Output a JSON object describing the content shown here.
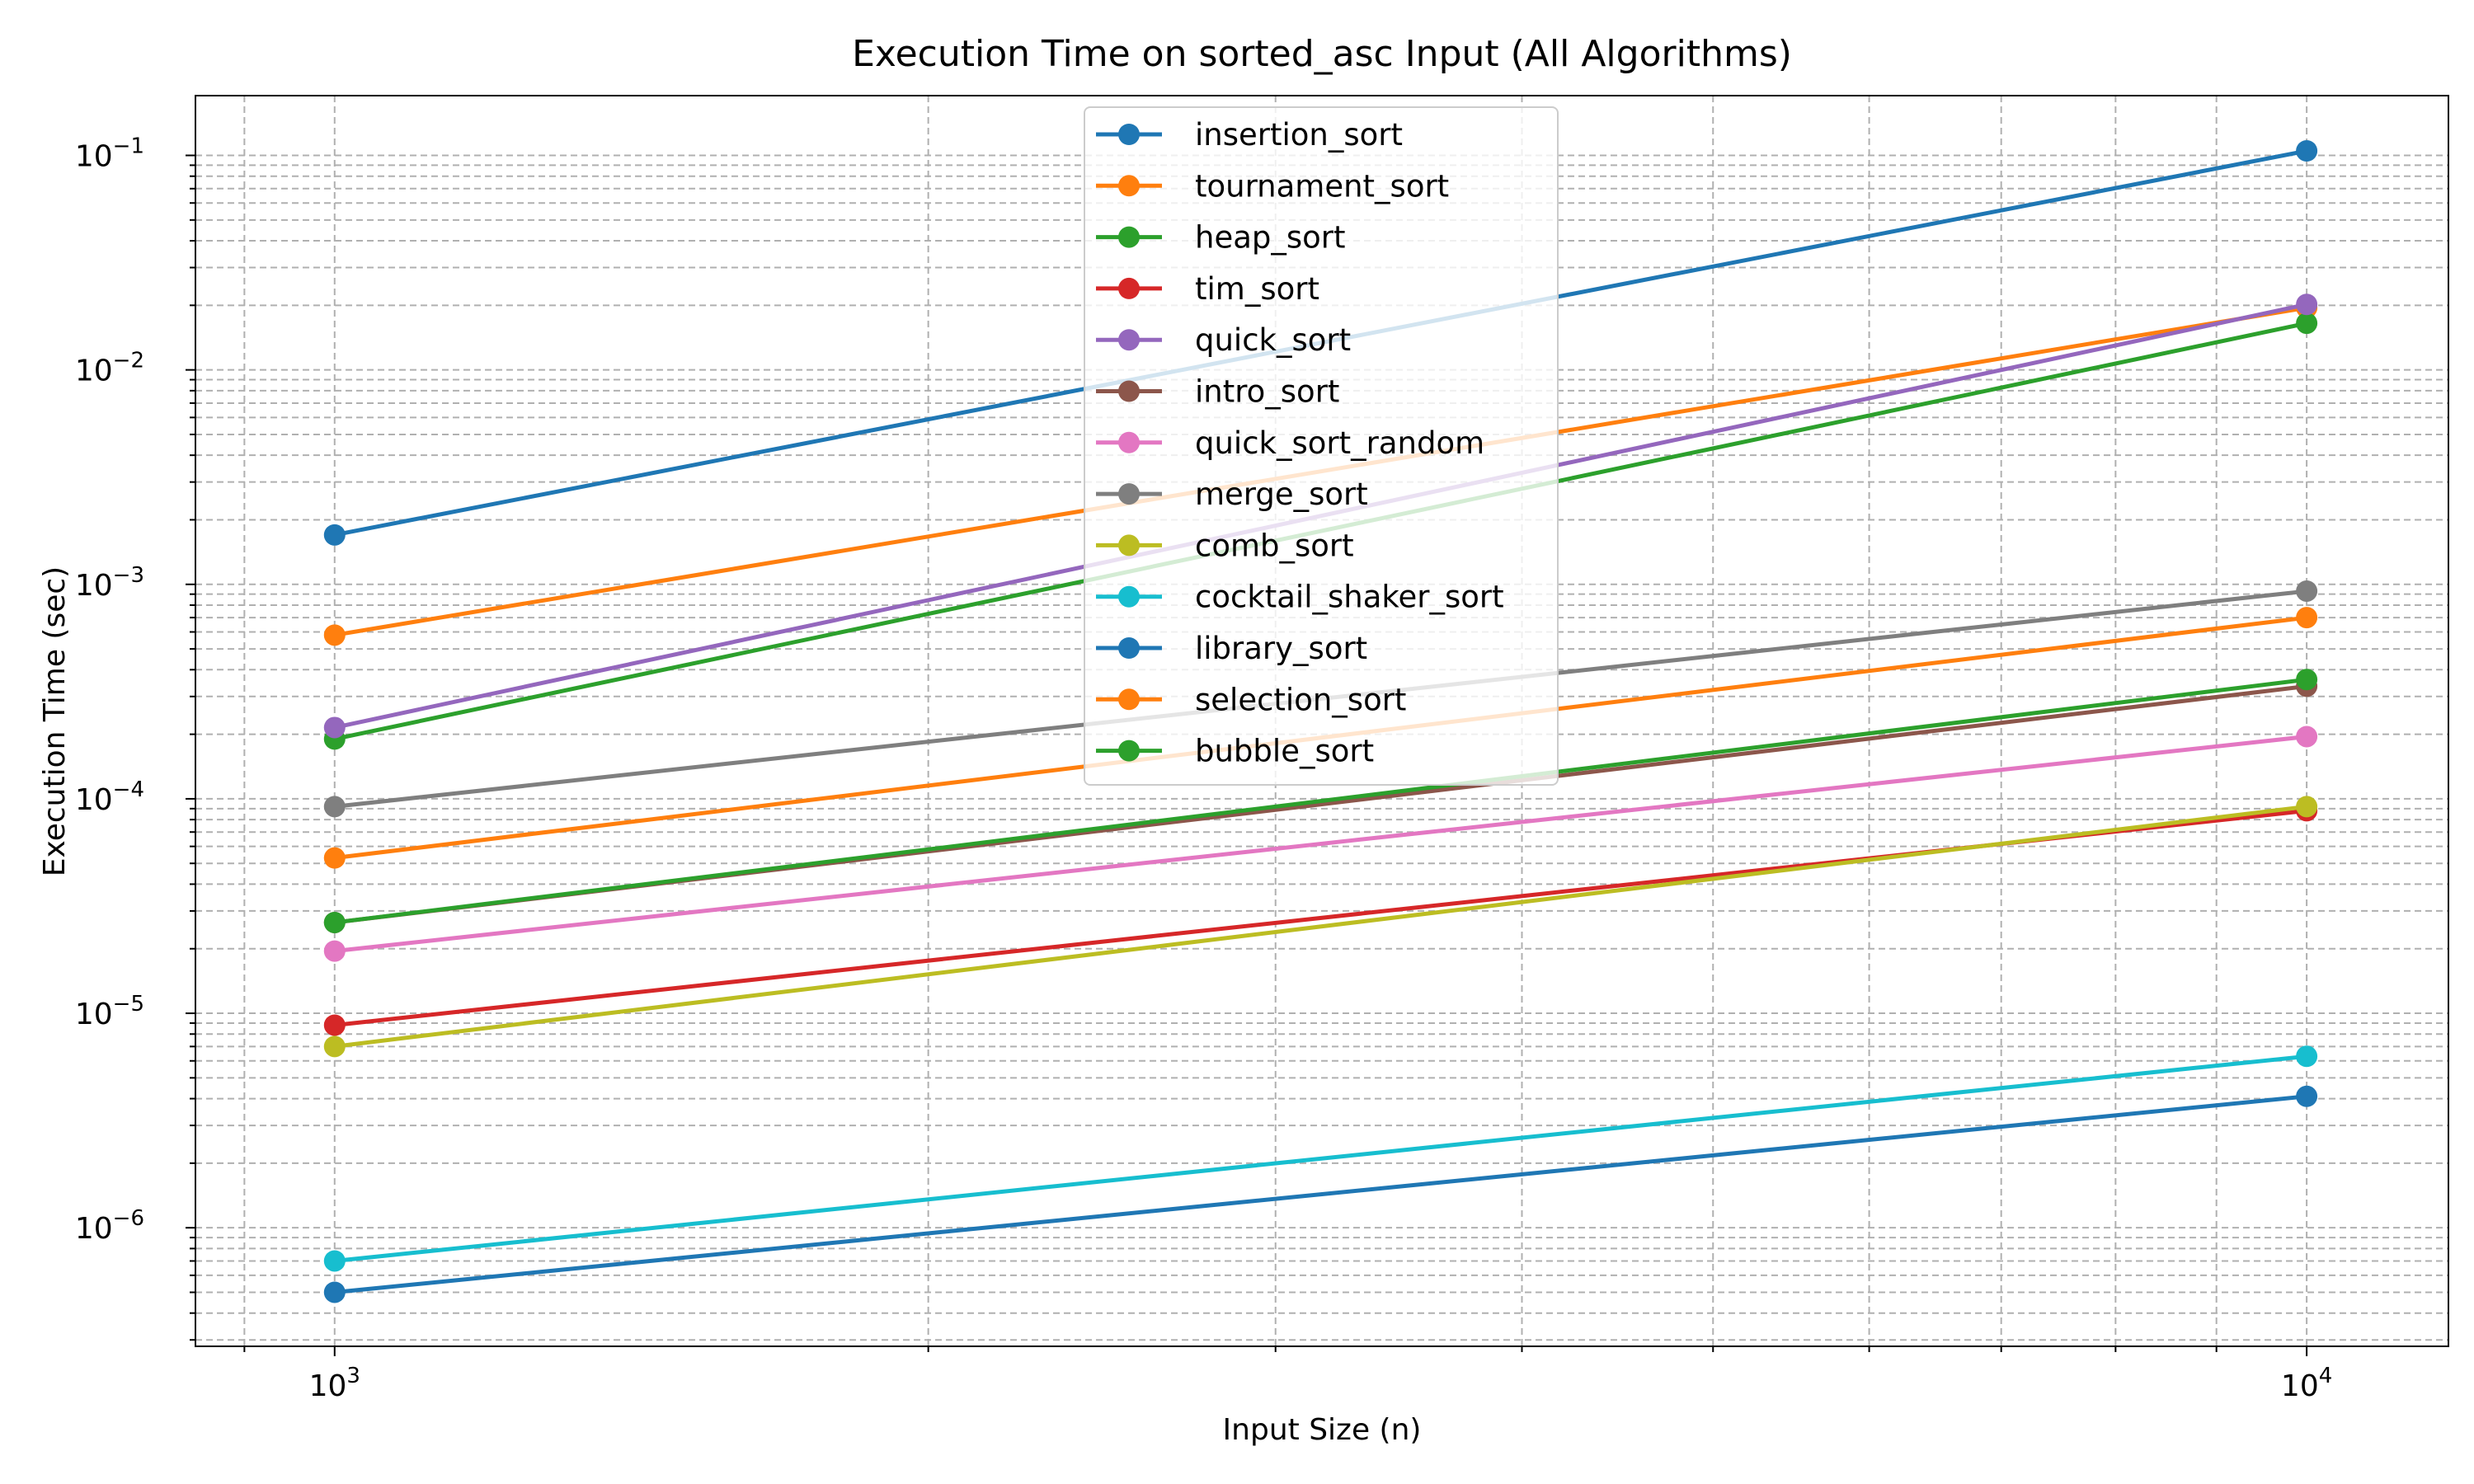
{
  "chart_data": {
    "type": "line",
    "title": "Execution Time on sorted_asc Input (All Algorithms)",
    "xlabel": "Input Size (n)",
    "ylabel": "Execution Time (sec)",
    "x_scale": "log",
    "y_scale": "log",
    "xlim": [
      850,
      11800
    ],
    "ylim": [
      2.8e-07,
      0.19
    ],
    "grid": true,
    "grid_style": "dashed",
    "legend_position": "top-center",
    "x": [
      1000,
      10000
    ],
    "x_ticks": [
      {
        "value": 1000,
        "base": "10",
        "exp": "3"
      },
      {
        "value": 10000,
        "base": "10",
        "exp": "4"
      }
    ],
    "y_ticks": [
      {
        "value": 1e-06,
        "base": "10",
        "exp": "−6"
      },
      {
        "value": 1e-05,
        "base": "10",
        "exp": "−5"
      },
      {
        "value": 0.0001,
        "base": "10",
        "exp": "−4"
      },
      {
        "value": 0.001,
        "base": "10",
        "exp": "−3"
      },
      {
        "value": 0.01,
        "base": "10",
        "exp": "−2"
      },
      {
        "value": 0.1,
        "base": "10",
        "exp": "−1"
      }
    ],
    "series": [
      {
        "name": "insertion_sort",
        "color": "#1f77b4",
        "values": [
          0.0017,
          0.105
        ]
      },
      {
        "name": "tournament_sort",
        "color": "#ff7f0e",
        "values": [
          0.00058,
          0.0195
        ]
      },
      {
        "name": "heap_sort",
        "color": "#2ca02c",
        "values": [
          0.00019,
          0.0165
        ]
      },
      {
        "name": "tim_sort",
        "color": "#d62728",
        "values": [
          8.8e-06,
          8.8e-05
        ]
      },
      {
        "name": "quick_sort",
        "color": "#9467bd",
        "values": [
          0.000215,
          0.0202
        ]
      },
      {
        "name": "intro_sort",
        "color": "#8c564b",
        "values": [
          2.65e-05,
          0.000335
        ]
      },
      {
        "name": "quick_sort_random",
        "color": "#e377c2",
        "values": [
          1.95e-05,
          0.000195
        ]
      },
      {
        "name": "merge_sort",
        "color": "#7f7f7f",
        "values": [
          9.2e-05,
          0.00093
        ]
      },
      {
        "name": "comb_sort",
        "color": "#bcbd22",
        "values": [
          7e-06,
          9.2e-05
        ]
      },
      {
        "name": "cocktail_shaker_sort",
        "color": "#17becf",
        "values": [
          7e-07,
          6.3e-06
        ]
      },
      {
        "name": "library_sort",
        "color": "#1f77b4",
        "values": [
          5e-07,
          4.1e-06
        ]
      },
      {
        "name": "selection_sort",
        "color": "#ff7f0e",
        "values": [
          5.3e-05,
          0.0007
        ]
      },
      {
        "name": "bubble_sort",
        "color": "#2ca02c",
        "values": [
          2.65e-05,
          0.00036
        ]
      }
    ]
  }
}
